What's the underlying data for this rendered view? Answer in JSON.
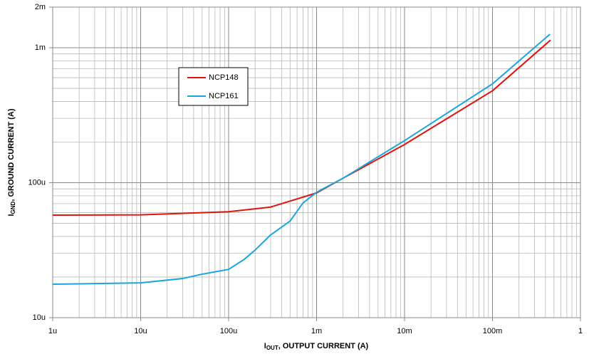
{
  "chart_data": {
    "type": "line",
    "xlabel": {
      "main": "I",
      "sub": "OUT",
      "rest": ", OUTPUT CURRENT (A)"
    },
    "ylabel": {
      "main": "I",
      "sub": "GND",
      "rest": ", GROUND CURRENT (A)"
    },
    "xscale": "log",
    "yscale": "log",
    "grid": true,
    "minor_grid": true,
    "legend": "upper-left",
    "xlim": [
      1e-06,
      1
    ],
    "ylim": [
      1e-05,
      0.002
    ],
    "xticks": [
      {
        "value": 1e-06,
        "label": "1u"
      },
      {
        "value": 1e-05,
        "label": "10u"
      },
      {
        "value": 0.0001,
        "label": "100u"
      },
      {
        "value": 0.001,
        "label": "1m"
      },
      {
        "value": 0.01,
        "label": "10m"
      },
      {
        "value": 0.1,
        "label": "100m"
      },
      1
    ],
    "yticks": [
      {
        "value": 1e-05,
        "label": "10u"
      },
      {
        "value": 0.0001,
        "label": "100u"
      },
      {
        "value": 0.001,
        "label": "1m"
      },
      {
        "value": 0.002,
        "label": "2m"
      }
    ],
    "series": [
      {
        "name": "NCP148",
        "color": "#e3120b",
        "x": [
          1e-06,
          1e-05,
          0.0001,
          0.0003,
          0.001,
          0.002,
          0.01,
          0.1,
          0.457
        ],
        "values": [
          5.75e-05,
          5.78e-05,
          6.1e-05,
          6.6e-05,
          8.4e-05,
          0.000108,
          0.000192,
          0.00048,
          0.00114
        ]
      },
      {
        "name": "NCP161",
        "color": "#1aa6dc",
        "x": [
          1e-06,
          1e-05,
          3e-05,
          5e-05,
          0.0001,
          0.00015,
          0.0002,
          0.0003,
          0.0005,
          0.0007,
          0.001,
          0.002,
          0.01,
          0.1,
          0.45
        ],
        "values": [
          1.77e-05,
          1.81e-05,
          1.95e-05,
          2.1e-05,
          2.28e-05,
          2.7e-05,
          3.17e-05,
          4.1e-05,
          5.2e-05,
          7.07e-05,
          8.5e-05,
          0.000108,
          0.000205,
          0.00054,
          0.00126
        ]
      }
    ]
  }
}
